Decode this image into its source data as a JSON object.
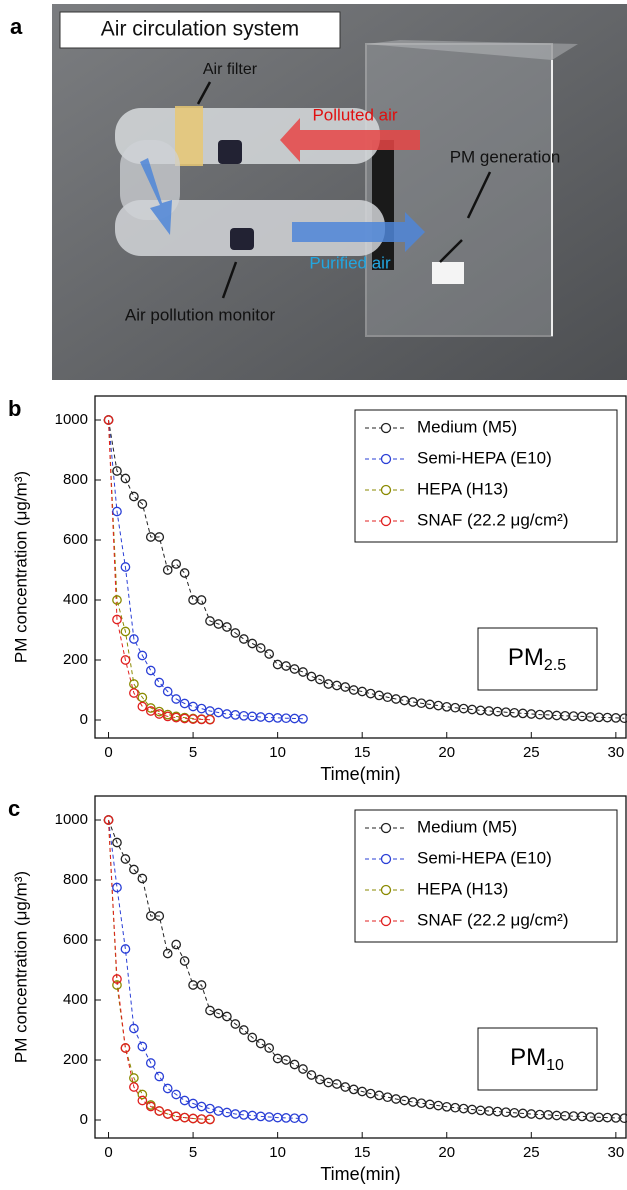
{
  "panel_a": {
    "panel": "a",
    "title": "Air circulation system",
    "labels": {
      "air_filter": "Air filter",
      "polluted_air": "Polluted air",
      "pm_generation": "PM generation",
      "purified_air": "Purified air",
      "monitor": "Air pollution monitor"
    }
  },
  "chart_data": [
    {
      "type": "line",
      "panel": "b",
      "xlabel": "Time(min)",
      "ylabel": "PM concentration (μg/m³)",
      "inset_label": {
        "main": "PM",
        "sub": "2.5"
      },
      "xlim": [
        -0.8,
        30.6
      ],
      "ylim": [
        -60,
        1080
      ],
      "xticks": [
        0,
        5,
        10,
        15,
        20,
        25,
        30
      ],
      "yticks": [
        0,
        200,
        400,
        600,
        800,
        1000
      ],
      "legend": "upper right",
      "linestyle": "dashed",
      "marker": "open circle",
      "series": [
        {
          "name": "Medium (M5)",
          "color": "#222222",
          "x": [
            0,
            0.5,
            1,
            1.5,
            2,
            2.5,
            3,
            3.5,
            4,
            4.5,
            5,
            5.5,
            6,
            6.5,
            7,
            7.5,
            8,
            8.5,
            9,
            9.5,
            10,
            10.5,
            11,
            11.5,
            12,
            12.5,
            13,
            13.5,
            14,
            14.5,
            15,
            15.5,
            16,
            16.5,
            17,
            17.5,
            18,
            18.5,
            19,
            19.5,
            20,
            20.5,
            21,
            21.5,
            22,
            22.5,
            23,
            23.5,
            24,
            24.5,
            25,
            25.5,
            26,
            26.5,
            27,
            27.5,
            28,
            28.5,
            29,
            29.5,
            30,
            30.5
          ],
          "values": [
            1000,
            830,
            805,
            745,
            720,
            610,
            610,
            500,
            520,
            490,
            400,
            400,
            330,
            320,
            310,
            290,
            270,
            255,
            240,
            220,
            185,
            180,
            170,
            160,
            145,
            135,
            120,
            115,
            110,
            100,
            95,
            88,
            82,
            76,
            70,
            65,
            60,
            56,
            52,
            48,
            44,
            41,
            38,
            35,
            32,
            30,
            28,
            26,
            24,
            22,
            20,
            18,
            17,
            15,
            14,
            13,
            12,
            10,
            9,
            8,
            7,
            6
          ]
        },
        {
          "name": "Semi-HEPA (E10)",
          "color": "#2a3fd6",
          "x": [
            0,
            0.5,
            1,
            1.5,
            2,
            2.5,
            3,
            3.5,
            4,
            4.5,
            5,
            5.5,
            6,
            6.5,
            7,
            7.5,
            8,
            8.5,
            9,
            9.5,
            10,
            10.5,
            11,
            11.5
          ],
          "values": [
            1000,
            695,
            510,
            270,
            215,
            165,
            125,
            95,
            70,
            55,
            45,
            38,
            30,
            25,
            20,
            17,
            14,
            12,
            10,
            8,
            7,
            6,
            5,
            4
          ]
        },
        {
          "name": "HEPA (H13)",
          "color": "#8a8a00",
          "x": [
            0,
            0.5,
            1,
            1.5,
            2,
            2.5,
            3,
            3.5,
            4,
            4.5,
            5,
            5.5,
            6
          ],
          "values": [
            1000,
            400,
            295,
            120,
            75,
            40,
            28,
            18,
            12,
            8,
            5,
            3,
            2
          ]
        },
        {
          "name": "SNAF (22.2 μg/cm²)",
          "color": "#e02020",
          "x": [
            0,
            0.5,
            1,
            1.5,
            2,
            2.5,
            3,
            3.5,
            4,
            4.5,
            5,
            5.5,
            6
          ],
          "values": [
            1000,
            335,
            200,
            90,
            45,
            30,
            20,
            12,
            8,
            5,
            3,
            2,
            1
          ]
        }
      ]
    },
    {
      "type": "line",
      "panel": "c",
      "xlabel": "Time(min)",
      "ylabel": "PM concentration (μg/m³)",
      "inset_label": {
        "main": "PM",
        "sub": "10"
      },
      "xlim": [
        -0.8,
        30.6
      ],
      "ylim": [
        -60,
        1080
      ],
      "xticks": [
        0,
        5,
        10,
        15,
        20,
        25,
        30
      ],
      "yticks": [
        0,
        200,
        400,
        600,
        800,
        1000
      ],
      "legend": "upper right",
      "linestyle": "dashed",
      "marker": "open circle",
      "series": [
        {
          "name": "Medium (M5)",
          "color": "#222222",
          "x": [
            0,
            0.5,
            1,
            1.5,
            2,
            2.5,
            3,
            3.5,
            4,
            4.5,
            5,
            5.5,
            6,
            6.5,
            7,
            7.5,
            8,
            8.5,
            9,
            9.5,
            10,
            10.5,
            11,
            11.5,
            12,
            12.5,
            13,
            13.5,
            14,
            14.5,
            15,
            15.5,
            16,
            16.5,
            17,
            17.5,
            18,
            18.5,
            19,
            19.5,
            20,
            20.5,
            21,
            21.5,
            22,
            22.5,
            23,
            23.5,
            24,
            24.5,
            25,
            25.5,
            26,
            26.5,
            27,
            27.5,
            28,
            28.5,
            29,
            29.5,
            30,
            30.5
          ],
          "values": [
            1000,
            925,
            870,
            835,
            805,
            680,
            680,
            555,
            585,
            530,
            450,
            450,
            365,
            355,
            345,
            320,
            300,
            275,
            255,
            240,
            205,
            200,
            185,
            170,
            150,
            135,
            125,
            120,
            110,
            102,
            95,
            88,
            82,
            76,
            70,
            65,
            60,
            56,
            52,
            48,
            44,
            41,
            38,
            35,
            32,
            30,
            28,
            26,
            24,
            22,
            20,
            18,
            17,
            15,
            14,
            13,
            12,
            10,
            9,
            8,
            7,
            6
          ]
        },
        {
          "name": "Semi-HEPA (E10)",
          "color": "#2a3fd6",
          "x": [
            0,
            0.5,
            1,
            1.5,
            2,
            2.5,
            3,
            3.5,
            4,
            4.5,
            5,
            5.5,
            6,
            6.5,
            7,
            7.5,
            8,
            8.5,
            9,
            9.5,
            10,
            10.5,
            11,
            11.5
          ],
          "values": [
            1000,
            775,
            570,
            305,
            245,
            190,
            145,
            105,
            85,
            65,
            55,
            45,
            38,
            30,
            25,
            20,
            17,
            15,
            12,
            10,
            8,
            7,
            6,
            5
          ]
        },
        {
          "name": "HEPA (H13)",
          "color": "#8a8a00",
          "x": [
            0,
            0.5,
            1,
            1.5,
            2,
            2.5,
            3,
            3.5,
            4,
            4.5,
            5,
            5.5,
            6
          ],
          "values": [
            1000,
            450,
            240,
            140,
            85,
            50,
            30,
            20,
            12,
            8,
            5,
            3,
            2
          ]
        },
        {
          "name": "SNAF (22.2 μg/cm²)",
          "color": "#e02020",
          "x": [
            0,
            0.5,
            1,
            1.5,
            2,
            2.5,
            3,
            3.5,
            4,
            4.5,
            5,
            5.5,
            6
          ],
          "values": [
            1000,
            470,
            240,
            110,
            65,
            45,
            30,
            20,
            12,
            8,
            5,
            3,
            2
          ]
        }
      ]
    }
  ]
}
